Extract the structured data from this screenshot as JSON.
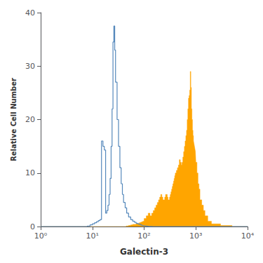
{
  "chart_data": {
    "type": "step",
    "xlabel": "Galectin-3",
    "ylabel": "Relative Cell Number",
    "log": "x",
    "grid": false,
    "xlim": [
      1,
      10000
    ],
    "xticks": [
      {
        "value": 1,
        "label": "10⁰"
      },
      {
        "value": 10,
        "label": "10¹"
      },
      {
        "value": 100,
        "label": "10²"
      },
      {
        "value": 1000,
        "label": "10³"
      },
      {
        "value": 10000,
        "label": "10⁴"
      }
    ],
    "ylim": [
      0,
      40
    ],
    "yticks": [
      0,
      10,
      20,
      30,
      40
    ],
    "series": [
      {
        "type": "area",
        "color": "#FFA500",
        "x": [
          1.0,
          5.0,
          8.0,
          10.0,
          15.0,
          20.0,
          25.0,
          30.0,
          35.0,
          40.0,
          45.0,
          50.0,
          55.0,
          60.0,
          65.0,
          70.0,
          75.0,
          80.0,
          85.0,
          90.0,
          95.0,
          100.0,
          110.0,
          120.0,
          130.0,
          140.0,
          150.0,
          160.0,
          170.0,
          180.0,
          190.0,
          200.0,
          210.0,
          220.0,
          230.0,
          240.0,
          250.0,
          260.0,
          270.0,
          280.0,
          290.0,
          300.0,
          310.0,
          320.0,
          330.0,
          340.0,
          350.0,
          360.0,
          370.0,
          380.0,
          390.0,
          400.0,
          420.0,
          440.0,
          460.0,
          480.0,
          500.0,
          520.0,
          540.0,
          560.0,
          580.0,
          600.0,
          620.0,
          640.0,
          660.0,
          680.0,
          700.0,
          720.0,
          740.0,
          760.0,
          780.0,
          800.0,
          820.0,
          840.0,
          860.0,
          880.0,
          900.0,
          920.0,
          940.0,
          960.0,
          980.0,
          1000.0,
          1050.0,
          1100.0,
          1150.0,
          1200.0,
          1300.0,
          1400.0,
          1500.0,
          1700.0,
          2000.0,
          3000.0,
          5000.0,
          10000.0
        ],
        "values": [
          0.0,
          0.0,
          0.0,
          0.0,
          0.0,
          0.0,
          0.0,
          0.0,
          0.0,
          0.0,
          0.0,
          0.1,
          0.2,
          0.3,
          0.4,
          0.4,
          0.5,
          0.6,
          0.7,
          0.8,
          0.9,
          1.0,
          1.5,
          2.0,
          2.5,
          2.0,
          2.5,
          3.0,
          3.5,
          4.0,
          4.5,
          5.0,
          5.5,
          6.0,
          5.5,
          5.0,
          5.0,
          5.5,
          6.0,
          6.0,
          5.5,
          5.0,
          5.0,
          5.5,
          6.0,
          6.5,
          7.0,
          7.5,
          8.0,
          8.5,
          9.0,
          9.5,
          10.0,
          10.5,
          11.0,
          11.5,
          12.5,
          12.0,
          11.5,
          12.0,
          13.0,
          14.0,
          15.0,
          16.0,
          17.0,
          18.0,
          20.0,
          22.0,
          24.0,
          24.5,
          25.5,
          29.0,
          26.0,
          22.0,
          20.0,
          18.0,
          17.0,
          16.0,
          15.5,
          15.0,
          14.5,
          14.0,
          12.0,
          10.0,
          8.0,
          7.0,
          5.0,
          4.0,
          3.0,
          2.0,
          1.0,
          0.5,
          0.2,
          0.0
        ]
      },
      {
        "type": "line",
        "color": "#5588BB",
        "x": [
          1.0,
          2.0,
          3.0,
          4.0,
          5.0,
          6.0,
          7.0,
          8.0,
          9.0,
          10.0,
          11.0,
          12.0,
          13.0,
          14.0,
          15.0,
          16.0,
          17.0,
          18.0,
          19.0,
          20.0,
          21.0,
          22.0,
          23.0,
          24.0,
          25.0,
          26.0,
          27.0,
          28.0,
          30.0,
          32.0,
          34.0,
          36.0,
          38.0,
          40.0,
          43.0,
          46.0,
          50.0,
          55.0,
          60.0,
          65.0,
          70.0,
          75.0,
          80.0,
          85.0,
          90.0,
          95.0,
          100.0,
          110.0,
          120.0,
          130.0,
          140.0,
          150.0,
          170.0,
          200.0,
          250.0,
          300.0,
          400.0,
          500.0,
          700.0,
          1000.0,
          2000.0,
          5000.0,
          10000.0
        ],
        "values": [
          0.0,
          0.0,
          0.0,
          0.0,
          0.0,
          0.0,
          0.0,
          0.0,
          0.1,
          0.3,
          0.5,
          0.7,
          0.9,
          1.1,
          1.3,
          16.0,
          15.0,
          14.3,
          2.5,
          3.0,
          4.0,
          6.0,
          9.0,
          15.0,
          22.0,
          34.5,
          37.5,
          33.0,
          27.0,
          20.0,
          15.0,
          11.0,
          8.0,
          6.0,
          4.5,
          3.5,
          2.5,
          1.8,
          1.3,
          1.0,
          0.8,
          0.6,
          0.5,
          0.4,
          0.3,
          0.2,
          0.15,
          0.1,
          0.05,
          0.02,
          0.01,
          0.0,
          0.0,
          0.0,
          0.0,
          0.0,
          0.0,
          0.0,
          0.0,
          0.0,
          0.0,
          0.0,
          0.0
        ]
      }
    ]
  }
}
